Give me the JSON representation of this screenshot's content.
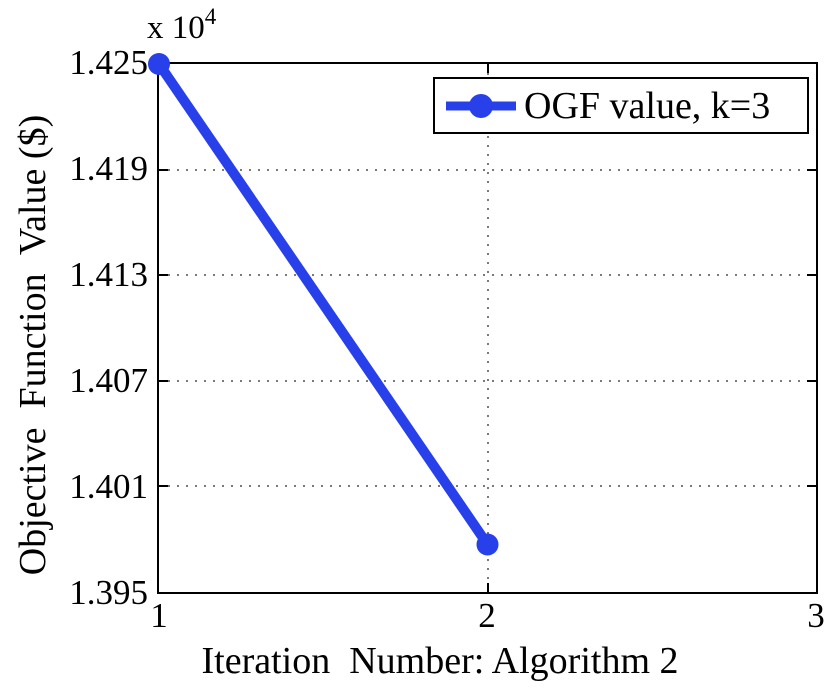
{
  "figure": {
    "background": "#ffffff",
    "exponent": {
      "prefix": "x 10",
      "power": "4"
    },
    "y_axis": {
      "label": "Objective  Function  Value ($)",
      "tick_labels": [
        "1.425",
        "1.419",
        "1.413",
        "1.407",
        "1.401",
        "1.395"
      ]
    },
    "x_axis": {
      "label": "Iteration  Number: Algorithm 2",
      "tick_labels": [
        "1",
        "2",
        "3"
      ]
    },
    "legend": {
      "label": "OGF value, k=3"
    }
  },
  "chart_data": {
    "type": "line",
    "title": "",
    "xlabel": "Iteration  Number: Algorithm 2",
    "ylabel": "Objective  Function  Value ($)",
    "y_multiplier_label": "x 10^4",
    "series": [
      {
        "name": "OGF value, k=3",
        "x": [
          1,
          2
        ],
        "values": [
          14250,
          13977
        ]
      }
    ],
    "xlim": [
      1,
      3
    ],
    "ylim": [
      13950,
      14250
    ],
    "xticks": [
      1,
      2,
      3
    ],
    "yticks": [
      13950,
      14010,
      14070,
      14130,
      14190,
      14250
    ],
    "grid": true,
    "grid_style": "dotted",
    "legend_position": "top-right",
    "line_color": "#2840e9",
    "line_width": 10,
    "marker": "circle",
    "marker_radius": 11
  }
}
